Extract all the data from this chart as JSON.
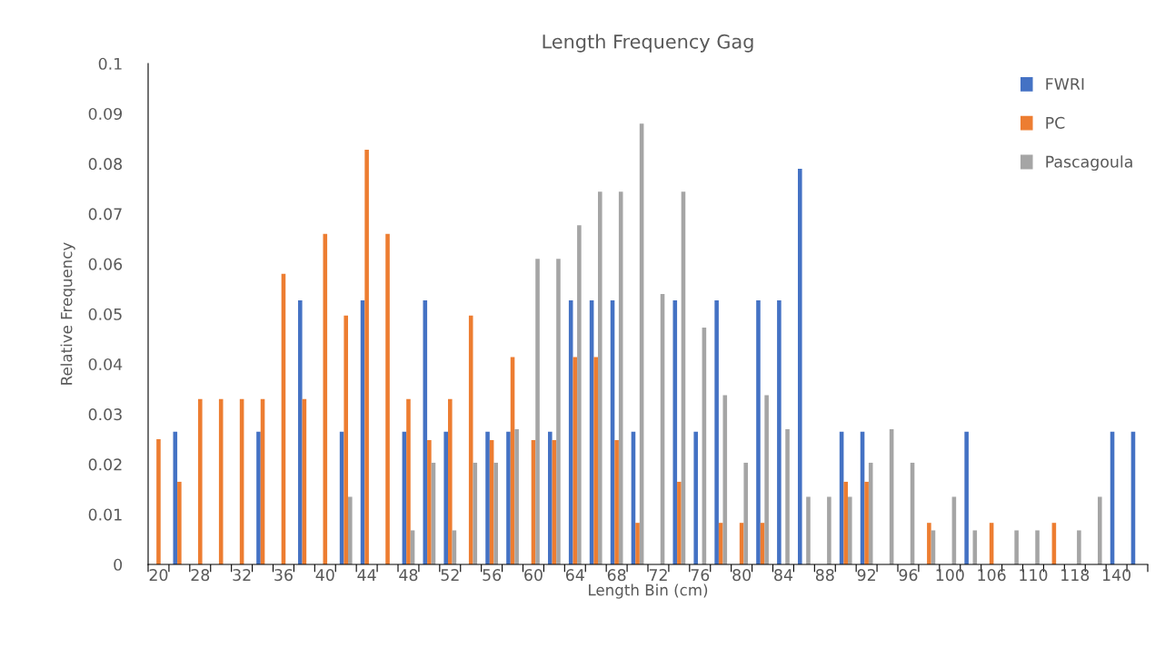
{
  "chart_data": {
    "type": "bar",
    "title": "Length Frequency Gag",
    "xlabel": "Length Bin (cm)",
    "ylabel": "Relative Frequency",
    "categories": [
      "20",
      null,
      "28",
      null,
      "32",
      null,
      "36",
      null,
      "40",
      null,
      "44",
      null,
      "48",
      null,
      "52",
      null,
      "56",
      null,
      "60",
      null,
      "64",
      null,
      "68",
      null,
      "72",
      null,
      "76",
      null,
      "80",
      null,
      "84",
      null,
      "88",
      null,
      "92",
      null,
      "96",
      null,
      "100",
      null,
      "106",
      null,
      "110",
      null,
      "118",
      null,
      "140",
      null
    ],
    "series": [
      {
        "name": "FWRI",
        "color": "#4472c4",
        "values": [
          null,
          0.0265,
          null,
          null,
          null,
          0.0265,
          null,
          0.0527,
          null,
          0.0265,
          0.0527,
          null,
          0.0265,
          0.0527,
          0.0265,
          null,
          0.0265,
          0.0265,
          null,
          0.0265,
          0.0527,
          0.0527,
          0.0527,
          0.0265,
          null,
          0.0527,
          0.0265,
          0.0527,
          null,
          0.0527,
          0.0527,
          0.079,
          null,
          0.0265,
          0.0265,
          null,
          null,
          null,
          null,
          0.0265,
          null,
          null,
          null,
          null,
          null,
          null,
          0.0265,
          0.0265
        ]
      },
      {
        "name": "PC",
        "color": "#ed7d31",
        "values": [
          0.025,
          0.0165,
          0.033,
          0.033,
          0.033,
          0.033,
          0.058,
          0.033,
          0.066,
          0.0497,
          0.0828,
          0.066,
          0.033,
          0.0248,
          0.033,
          0.0497,
          0.0248,
          0.0414,
          0.0248,
          0.0248,
          0.0414,
          0.0414,
          0.0248,
          0.0083,
          null,
          0.0165,
          null,
          0.0083,
          0.0083,
          0.0083,
          null,
          null,
          null,
          0.0165,
          0.0165,
          null,
          null,
          0.0083,
          null,
          null,
          0.0083,
          null,
          null,
          0.0083,
          null,
          null,
          null,
          null
        ]
      },
      {
        "name": "Pascagoula",
        "color": "#a5a5a5",
        "values": [
          null,
          null,
          null,
          null,
          null,
          null,
          null,
          null,
          null,
          0.0135,
          null,
          null,
          0.0068,
          0.0203,
          0.0068,
          0.0203,
          0.0203,
          0.027,
          0.061,
          0.061,
          0.0677,
          0.0744,
          0.0744,
          0.088,
          0.054,
          0.0744,
          0.0473,
          0.0338,
          0.0203,
          0.0338,
          0.027,
          0.0135,
          0.0135,
          0.0135,
          0.0203,
          0.027,
          0.0203,
          0.0068,
          0.0135,
          0.0068,
          null,
          0.0068,
          0.0068,
          null,
          0.0068,
          0.0135,
          null,
          null
        ]
      }
    ],
    "ylim": [
      0,
      0.1
    ],
    "yticks": [
      0,
      0.01,
      0.02,
      0.03,
      0.04,
      0.05,
      0.06,
      0.07,
      0.08,
      0.09,
      0.1
    ],
    "grid": false,
    "legend": "top right"
  }
}
